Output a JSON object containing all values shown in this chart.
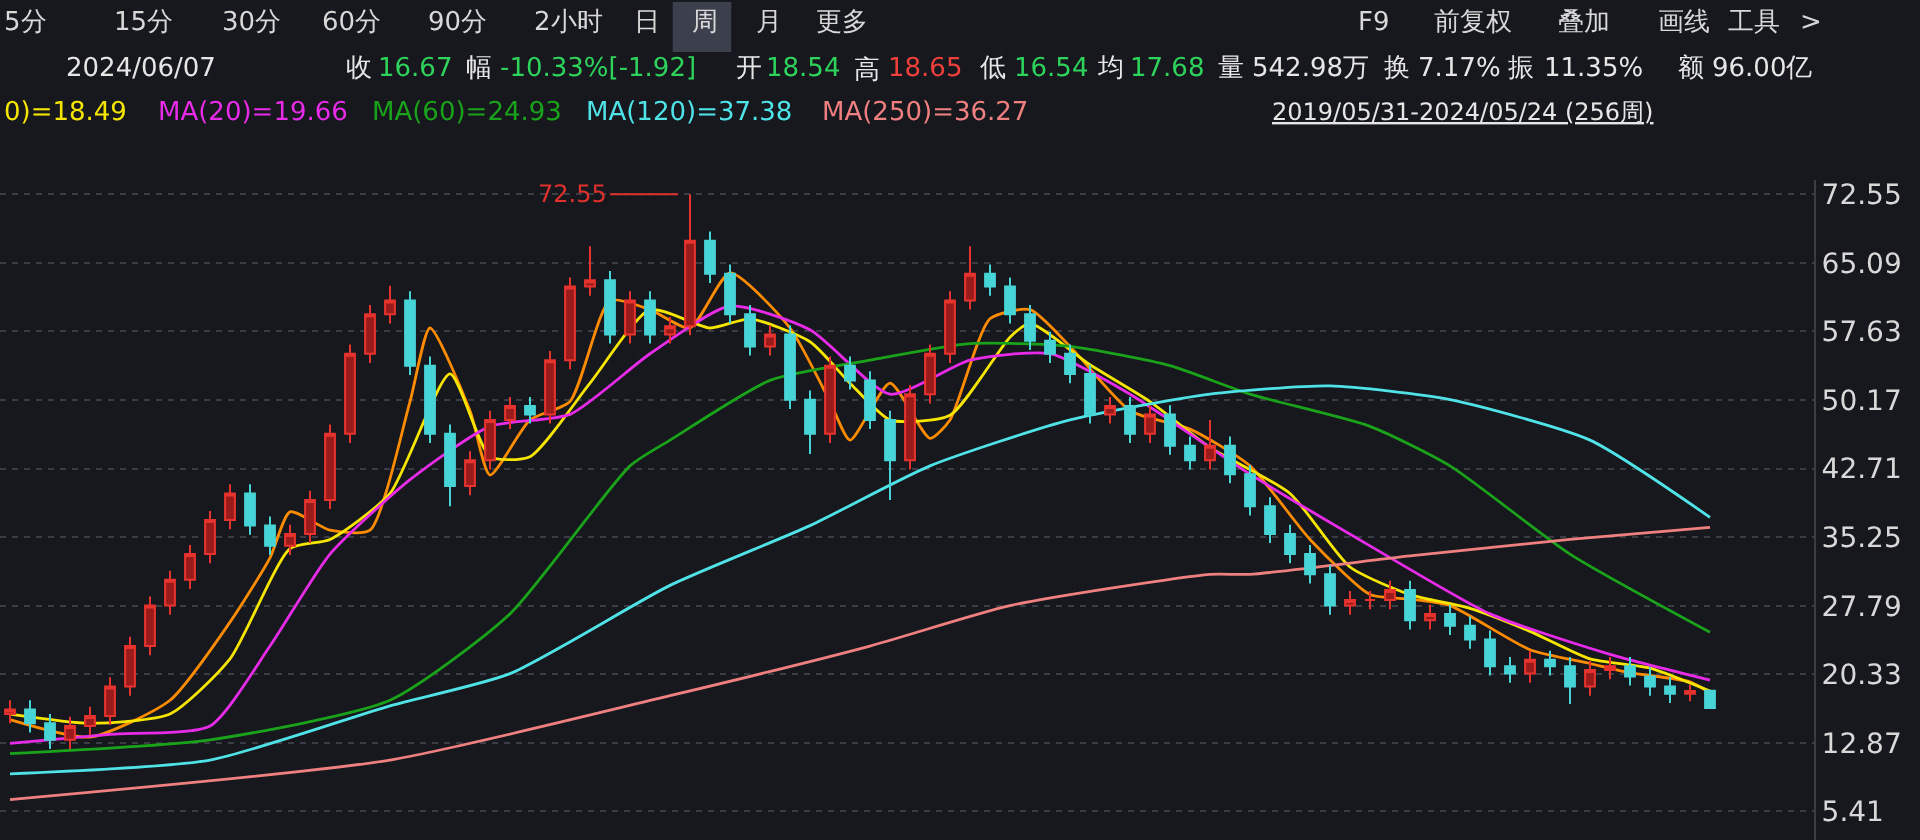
{
  "chart_data": {
    "type": "candlestick",
    "annotations": [
      "5分",
      "15分",
      "30分",
      "60分",
      "90分",
      "2小时",
      "日",
      "周",
      "月",
      "更多",
      "F9",
      "前复权",
      "叠加",
      "画线",
      "工具",
      ">",
      "2024/06/07",
      "收",
      "16.67",
      "幅",
      "-10.33%[-1.92]",
      "开",
      "18.54",
      "高",
      "18.65",
      "低",
      "16.54",
      "均",
      "17.68",
      "量",
      "542.98万",
      "换",
      "7.17%",
      "振",
      "11.35%",
      "额",
      "96.00亿",
      "2019/05/31-2024/05/24 (256周)",
      "72.55"
    ],
    "categories": [
      null,
      null,
      null,
      null,
      null,
      null,
      null,
      null,
      null,
      null,
      null,
      null,
      null,
      null,
      null,
      null,
      null,
      null,
      null,
      null,
      null,
      null,
      null,
      null,
      null,
      null,
      null,
      null,
      null,
      null,
      null,
      null,
      null,
      null,
      null,
      null,
      null,
      null,
      null,
      null,
      null,
      null,
      null,
      null,
      null,
      null,
      null,
      null,
      null,
      null,
      null,
      null,
      null,
      null,
      null,
      null,
      null,
      null,
      null,
      null,
      null,
      null,
      null,
      null,
      null,
      null,
      null,
      null,
      null,
      null,
      null,
      null,
      null,
      null,
      null,
      null,
      null,
      null,
      null,
      null,
      null,
      null,
      null,
      null,
      null,
      null
    ],
    "ohlc": [
      [
        16.0,
        17.5,
        15.0,
        16.5
      ],
      [
        16.5,
        17.5,
        14.0,
        15.0
      ],
      [
        15.0,
        16.0,
        12.2,
        13.2
      ],
      [
        13.2,
        15.7,
        12.2,
        14.7
      ],
      [
        14.7,
        16.8,
        13.7,
        15.8
      ],
      [
        15.8,
        20.0,
        14.8,
        19.0
      ],
      [
        19.0,
        24.4,
        18.0,
        23.4
      ],
      [
        23.4,
        28.8,
        22.4,
        27.8
      ],
      [
        27.8,
        31.6,
        26.8,
        30.6
      ],
      [
        30.6,
        34.4,
        29.6,
        33.4
      ],
      [
        33.4,
        38.1,
        32.4,
        37.1
      ],
      [
        37.1,
        41.0,
        36.1,
        40.0
      ],
      [
        40.0,
        41.0,
        35.5,
        36.5
      ],
      [
        36.5,
        37.5,
        33.3,
        34.3
      ],
      [
        34.3,
        36.6,
        33.3,
        35.6
      ],
      [
        35.6,
        40.3,
        34.6,
        39.3
      ],
      [
        39.3,
        47.5,
        38.3,
        46.5
      ],
      [
        46.5,
        56.2,
        45.5,
        55.2
      ],
      [
        55.2,
        60.5,
        54.2,
        59.5
      ],
      [
        59.5,
        62.6,
        58.5,
        61.0
      ],
      [
        61.0,
        62.0,
        52.9,
        53.9
      ],
      [
        53.9,
        54.9,
        45.5,
        46.5
      ],
      [
        46.5,
        47.5,
        38.6,
        40.8
      ],
      [
        40.8,
        44.6,
        39.8,
        43.6
      ],
      [
        43.6,
        49.0,
        42.6,
        48.0
      ],
      [
        48.0,
        50.5,
        47.0,
        49.5
      ],
      [
        49.5,
        50.5,
        47.6,
        48.6
      ],
      [
        48.6,
        55.5,
        47.6,
        54.5
      ],
      [
        54.5,
        63.5,
        53.5,
        62.5
      ],
      [
        62.5,
        66.9,
        61.5,
        63.2
      ],
      [
        63.2,
        64.2,
        56.3,
        57.3
      ],
      [
        57.3,
        62.0,
        56.3,
        61.0
      ],
      [
        61.0,
        62.0,
        56.3,
        57.3
      ],
      [
        57.3,
        59.2,
        56.3,
        58.2
      ],
      [
        58.2,
        72.55,
        57.2,
        67.5
      ],
      [
        67.5,
        68.5,
        62.9,
        63.9
      ],
      [
        63.9,
        64.9,
        58.5,
        59.5
      ],
      [
        59.5,
        60.5,
        55.0,
        56.0
      ],
      [
        56.0,
        58.3,
        55.0,
        57.3
      ],
      [
        57.3,
        58.3,
        49.2,
        50.2
      ],
      [
        50.2,
        51.2,
        44.3,
        46.5
      ],
      [
        46.5,
        54.9,
        45.5,
        53.9
      ],
      [
        53.9,
        54.9,
        51.3,
        52.3
      ],
      [
        52.3,
        53.3,
        47.0,
        48.0
      ],
      [
        48.0,
        49.0,
        39.3,
        43.6
      ],
      [
        43.6,
        51.8,
        42.6,
        50.8
      ],
      [
        50.8,
        56.2,
        49.8,
        55.2
      ],
      [
        55.2,
        62.0,
        54.2,
        61.0
      ],
      [
        61.0,
        66.9,
        60.0,
        63.9
      ],
      [
        63.9,
        64.9,
        61.5,
        62.5
      ],
      [
        62.5,
        63.5,
        58.5,
        59.5
      ],
      [
        59.5,
        60.5,
        55.6,
        56.6
      ],
      [
        56.6,
        57.6,
        54.2,
        55.2
      ],
      [
        55.2,
        56.2,
        52.0,
        53.0
      ],
      [
        53.0,
        54.0,
        47.6,
        48.6
      ],
      [
        48.6,
        50.5,
        47.6,
        49.5
      ],
      [
        49.5,
        50.5,
        45.5,
        46.5
      ],
      [
        46.5,
        49.6,
        45.5,
        48.6
      ],
      [
        48.6,
        49.6,
        44.2,
        45.2
      ],
      [
        45.2,
        46.2,
        42.6,
        43.6
      ],
      [
        43.6,
        48.0,
        42.6,
        45.2
      ],
      [
        45.2,
        46.2,
        41.1,
        42.1
      ],
      [
        42.1,
        43.1,
        37.6,
        38.6
      ],
      [
        38.6,
        39.6,
        34.6,
        35.6
      ],
      [
        35.6,
        36.6,
        32.4,
        33.4
      ],
      [
        33.4,
        34.4,
        30.2,
        31.2
      ],
      [
        31.2,
        32.2,
        26.8,
        27.8
      ],
      [
        27.8,
        29.4,
        26.8,
        28.4
      ],
      [
        28.4,
        29.4,
        27.4,
        28.4
      ],
      [
        28.4,
        30.5,
        27.4,
        29.5
      ],
      [
        29.5,
        30.5,
        25.2,
        26.2
      ],
      [
        26.2,
        27.9,
        25.2,
        26.9
      ],
      [
        26.9,
        27.9,
        24.6,
        25.6
      ],
      [
        25.6,
        26.6,
        23.1,
        24.1
      ],
      [
        24.1,
        25.1,
        20.2,
        21.2
      ],
      [
        21.2,
        22.2,
        19.4,
        20.4
      ],
      [
        20.4,
        22.9,
        19.4,
        21.9
      ],
      [
        21.9,
        22.9,
        20.2,
        21.2
      ],
      [
        21.2,
        22.2,
        17.1,
        19.0
      ],
      [
        19.0,
        21.8,
        18.0,
        20.8
      ],
      [
        20.8,
        22.2,
        19.8,
        21.2
      ],
      [
        21.2,
        22.2,
        19.1,
        20.1
      ],
      [
        20.1,
        21.1,
        18.0,
        19.0
      ],
      [
        19.0,
        20.0,
        17.2,
        18.2
      ],
      [
        18.2,
        19.2,
        17.4,
        18.5
      ],
      [
        18.54,
        18.65,
        16.54,
        16.67
      ]
    ],
    "series": [
      {
        "type": "line",
        "color": "#ff8c00",
        "values": [
          15.4,
          null,
          null,
          null,
          13.5,
          null,
          null,
          null,
          17.5,
          null,
          null,
          26,
          null,
          33,
          38,
          null,
          36,
          null,
          36,
          null,
          50,
          58,
          null,
          49,
          42,
          null,
          48,
          null,
          50,
          null,
          61,
          null,
          60,
          null,
          58,
          null,
          64,
          null,
          null,
          58,
          null,
          50,
          45.8,
          null,
          52,
          null,
          46,
          48,
          null,
          59,
          null,
          60,
          null,
          56,
          null,
          null,
          49,
          null,
          null,
          47,
          null,
          null,
          43,
          null,
          null,
          35,
          null,
          null,
          29,
          null,
          28.5,
          null,
          27.8,
          null,
          null,
          null,
          23,
          null,
          null,
          21.5,
          null,
          20.5,
          null,
          null,
          19.5,
          18.3
        ]
      },
      {
        "type": "line",
        "name": "0)=18.49",
        "color": "#f5e500",
        "values": [
          16,
          null,
          null,
          null,
          15,
          null,
          null,
          null,
          16,
          null,
          null,
          22,
          null,
          null,
          34,
          null,
          35,
          null,
          null,
          40,
          null,
          null,
          53,
          null,
          44,
          null,
          44,
          null,
          null,
          52,
          null,
          null,
          60,
          null,
          null,
          58,
          null,
          59,
          null,
          null,
          56.5,
          null,
          52,
          null,
          48,
          null,
          null,
          48.5,
          null,
          null,
          57,
          58.5,
          null,
          null,
          54,
          null,
          null,
          50,
          null,
          null,
          45,
          null,
          null,
          null,
          40,
          null,
          null,
          32,
          null,
          null,
          29,
          null,
          null,
          27.5,
          null,
          null,
          25,
          null,
          null,
          22,
          null,
          null,
          21,
          null,
          null,
          18.5
        ]
      },
      {
        "type": "line",
        "name": "MA(20)=19.66",
        "color": "#e82be8",
        "values": [
          12.8,
          null,
          null,
          null,
          null,
          13.8,
          null,
          null,
          null,
          null,
          14.7,
          null,
          null,
          23.4,
          null,
          null,
          33.4,
          null,
          null,
          null,
          41.5,
          null,
          null,
          null,
          47.3,
          null,
          null,
          null,
          48.6,
          null,
          null,
          null,
          55.2,
          null,
          null,
          null,
          60.4,
          null,
          null,
          null,
          57.8,
          null,
          null,
          null,
          50.8,
          null,
          null,
          null,
          54.5,
          null,
          null,
          null,
          55.2,
          null,
          null,
          null,
          50.8,
          null,
          null,
          null,
          null,
          null,
          42.1,
          null,
          null,
          null,
          null,
          null,
          34.3,
          null,
          null,
          null,
          null,
          null,
          26.9,
          null,
          null,
          null,
          null,
          null,
          22.5,
          null,
          null,
          null,
          null,
          19.7
        ]
      },
      {
        "type": "line",
        "name": "MA(60)=24.93",
        "color": "#1aa31a",
        "values": [
          11.7,
          null,
          null,
          null,
          null,
          null,
          null,
          null,
          null,
          null,
          13.2,
          null,
          null,
          null,
          null,
          null,
          null,
          null,
          null,
          17.5,
          null,
          null,
          null,
          null,
          null,
          26.9,
          null,
          null,
          null,
          null,
          null,
          43.0,
          null,
          45.8,
          null,
          null,
          null,
          null,
          52.3,
          null,
          null,
          null,
          null,
          54.5,
          null,
          null,
          null,
          null,
          56.3,
          null,
          null,
          null,
          null,
          56.0,
          null,
          null,
          null,
          null,
          53.9,
          null,
          null,
          null,
          50.8,
          null,
          null,
          null,
          null,
          null,
          47.3,
          null,
          null,
          null,
          43.0,
          null,
          null,
          null,
          null,
          null,
          33.4,
          null,
          null,
          null,
          null,
          null,
          null,
          24.9
        ]
      },
      {
        "type": "line",
        "name": "MA(120)=37.38",
        "color": "#4fe3e8",
        "values": [
          9.5,
          null,
          null,
          null,
          null,
          null,
          null,
          null,
          null,
          null,
          11.0,
          null,
          null,
          null,
          null,
          null,
          null,
          null,
          null,
          16.9,
          null,
          null,
          null,
          null,
          null,
          20.4,
          null,
          null,
          null,
          null,
          null,
          null,
          null,
          30.0,
          null,
          null,
          null,
          null,
          null,
          null,
          36.5,
          null,
          null,
          null,
          null,
          null,
          43.0,
          null,
          null,
          null,
          null,
          null,
          null,
          48.0,
          null,
          null,
          null,
          null,
          null,
          null,
          50.8,
          null,
          null,
          null,
          null,
          null,
          51.7,
          null,
          null,
          null,
          null,
          null,
          50.2,
          null,
          null,
          null,
          null,
          null,
          null,
          45.8,
          null,
          null,
          null,
          null,
          null,
          37.4
        ]
      },
      {
        "type": "line",
        "name": "MA(250)=36.27",
        "color": "#f08080",
        "values": [
          6.7,
          null,
          null,
          null,
          null,
          null,
          null,
          null,
          null,
          null,
          null,
          null,
          null,
          null,
          null,
          null,
          null,
          null,
          null,
          11.0,
          null,
          null,
          null,
          null,
          null,
          null,
          null,
          null,
          null,
          null,
          null,
          null,
          null,
          18.0,
          null,
          null,
          null,
          null,
          null,
          null,
          null,
          null,
          null,
          23.4,
          null,
          null,
          null,
          null,
          null,
          null,
          27.8,
          null,
          null,
          null,
          null,
          null,
          null,
          null,
          null,
          null,
          31.2,
          null,
          31.2,
          null,
          null,
          null,
          null,
          null,
          null,
          null,
          33.2,
          null,
          null,
          null,
          null,
          null,
          null,
          null,
          35.0,
          null,
          null,
          null,
          null,
          null,
          null,
          36.3
        ]
      }
    ],
    "tick_labels": "y",
    "ylim": [
      2.3,
      74.1
    ],
    "yticks": [
      5.41,
      12.87,
      20.33,
      27.79,
      35.25,
      42.71,
      50.17,
      57.63,
      65.09,
      72.55
    ],
    "grid": "y",
    "legend": false,
    "marker": "none",
    "line_style": "solid"
  }
}
